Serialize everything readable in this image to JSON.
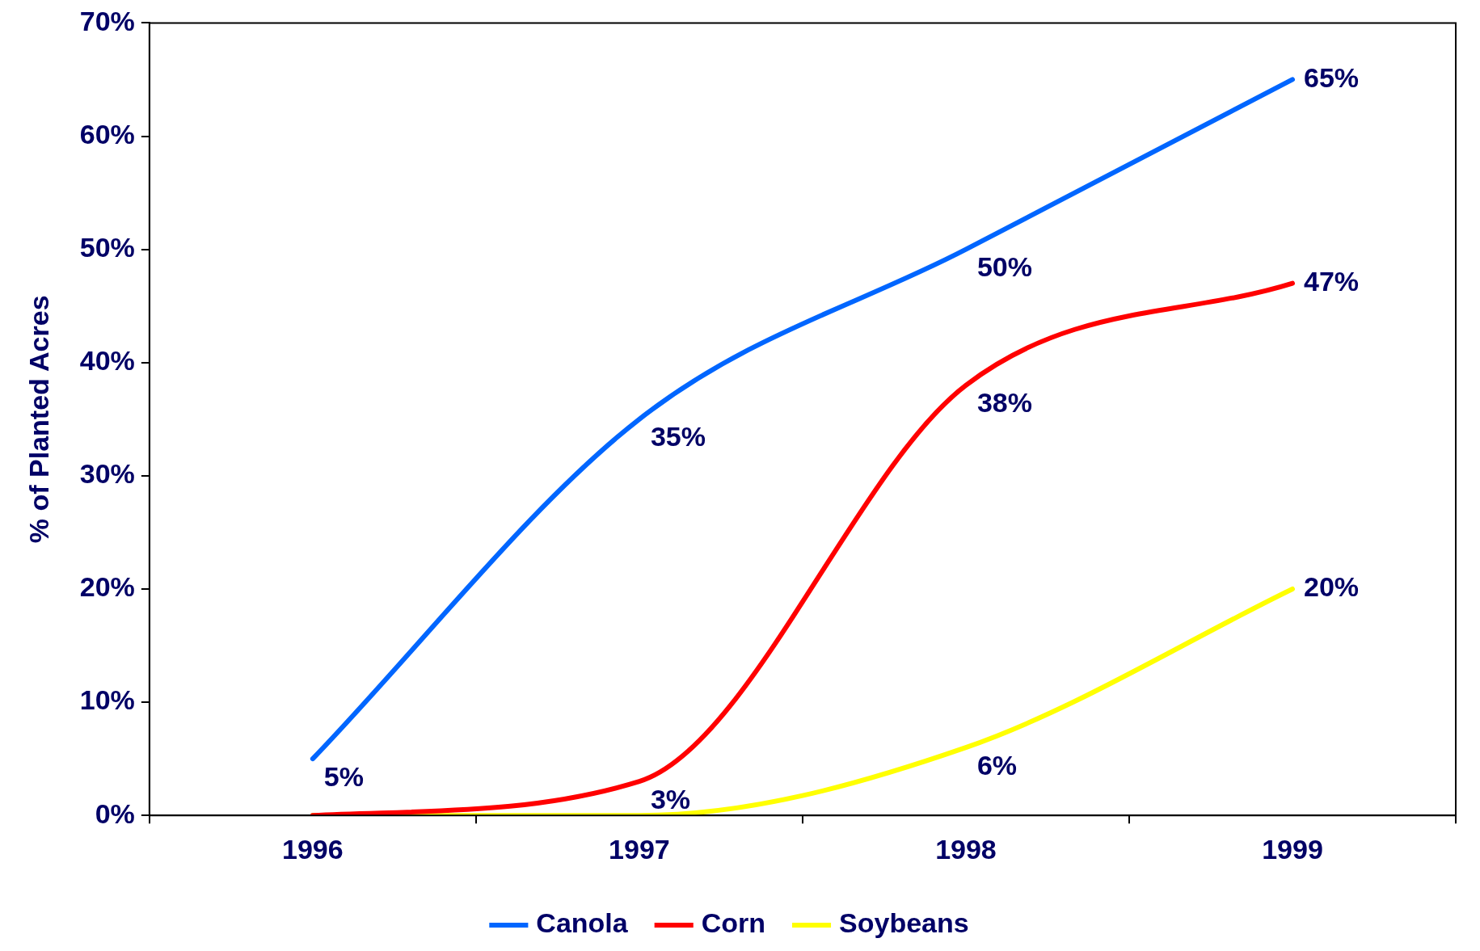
{
  "chart_data": {
    "type": "line",
    "ylabel": "% of Planted Acres",
    "categories": [
      "1996",
      "1997",
      "1998",
      "1999"
    ],
    "series": [
      {
        "name": "Canola",
        "color": "#0066ff",
        "values": [
          5,
          35,
          50,
          65
        ],
        "value_labels": [
          "5%",
          "35%",
          "50%",
          "65%"
        ]
      },
      {
        "name": "Corn",
        "color": "#ff0000",
        "values": [
          0,
          3,
          38,
          47
        ],
        "value_labels": [
          null,
          "3%",
          "38%",
          "47%"
        ]
      },
      {
        "name": "Soybeans",
        "color": "#ffff00",
        "values": [
          0,
          0,
          6,
          20
        ],
        "value_labels": [
          null,
          null,
          "6%",
          "20%"
        ]
      }
    ],
    "ylim": [
      0,
      70
    ],
    "yticks": [
      {
        "value": 0,
        "label": "0%"
      },
      {
        "value": 10,
        "label": "10%"
      },
      {
        "value": 20,
        "label": "20%"
      },
      {
        "value": 30,
        "label": "30%"
      },
      {
        "value": 40,
        "label": "40%"
      },
      {
        "value": 50,
        "label": "50%"
      },
      {
        "value": 60,
        "label": "60%"
      },
      {
        "value": 70,
        "label": "70%"
      }
    ],
    "grid": false,
    "legend": "bottom",
    "marker": "none",
    "line_style": "solid"
  }
}
